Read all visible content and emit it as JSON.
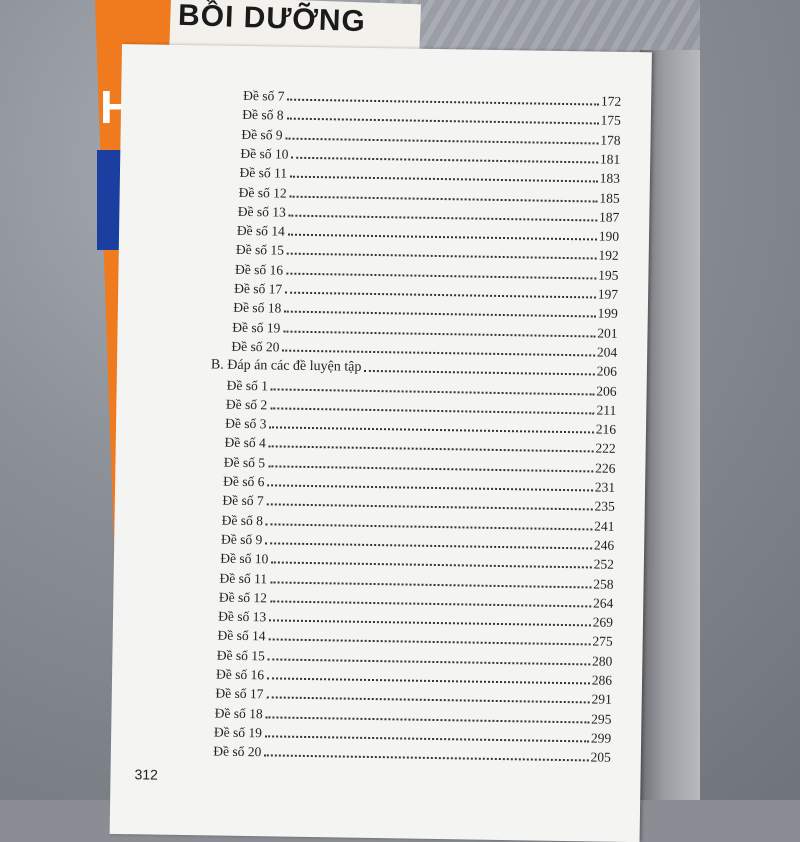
{
  "background_book": {
    "title": "BỒI DƯỠNG",
    "cover_text": "HỌC"
  },
  "toc": {
    "group1": [
      {
        "label": "Đề số 7",
        "page": "172"
      },
      {
        "label": "Đề số 8",
        "page": "175"
      },
      {
        "label": "Đề số 9",
        "page": "178"
      },
      {
        "label": "Đề số 10",
        "page": "181"
      },
      {
        "label": "Đề số 11",
        "page": "183"
      },
      {
        "label": "Đề số 12",
        "page": "185"
      },
      {
        "label": "Đề số 13",
        "page": "187"
      },
      {
        "label": "Đề số 14",
        "page": "190"
      },
      {
        "label": "Đề số 15",
        "page": "192"
      },
      {
        "label": "Đề số 16",
        "page": "195"
      },
      {
        "label": "Đề số 17",
        "page": "197"
      },
      {
        "label": "Đề số 18",
        "page": "199"
      },
      {
        "label": "Đề số 19",
        "page": "201"
      },
      {
        "label": "Đề số 20",
        "page": "204"
      }
    ],
    "section_b": {
      "label": "B. Đáp án các đề luyện tập",
      "page": "206"
    },
    "group2": [
      {
        "label": "Đề số 1",
        "page": "206"
      },
      {
        "label": "Đề số 2",
        "page": "211"
      },
      {
        "label": "Đề số 3",
        "page": "216"
      },
      {
        "label": "Đề số 4",
        "page": "222"
      },
      {
        "label": "Đề số 5",
        "page": "226"
      },
      {
        "label": "Đề số 6",
        "page": "231"
      },
      {
        "label": "Đề số 7",
        "page": "235"
      },
      {
        "label": "Đề số 8",
        "page": "241"
      },
      {
        "label": "Đề số 9",
        "page": "246"
      },
      {
        "label": "Đề số 10",
        "page": "252"
      },
      {
        "label": "Đề số 11",
        "page": "258"
      },
      {
        "label": "Đề số 12",
        "page": "264"
      },
      {
        "label": "Đề số 13",
        "page": "269"
      },
      {
        "label": "Đề số 14",
        "page": "275"
      },
      {
        "label": "Đề số 15",
        "page": "280"
      },
      {
        "label": "Đề số 16",
        "page": "286"
      },
      {
        "label": "Đề số 17",
        "page": "291"
      },
      {
        "label": "Đề số 18",
        "page": "295"
      },
      {
        "label": "Đề số 19",
        "page": "299"
      },
      {
        "label": "Đề số 20",
        "page": "205"
      }
    ]
  },
  "page_number": "312"
}
